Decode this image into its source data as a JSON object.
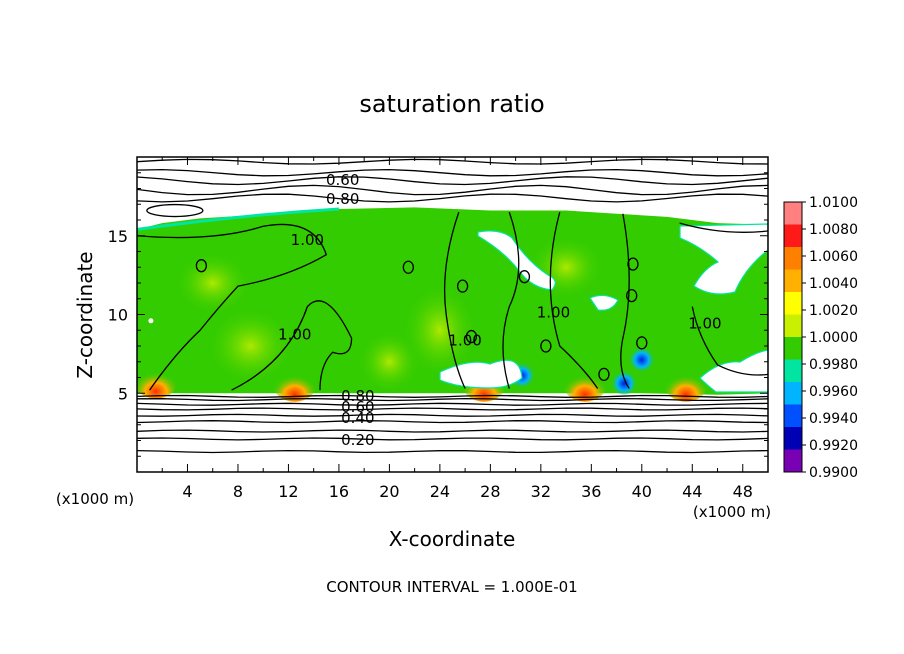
{
  "chart_data": {
    "type": "heatmap",
    "title": "saturation ratio",
    "xlabel": "X-coordinate",
    "ylabel": "Z-coordinate",
    "x_unit": "(x1000 m)",
    "y_unit": "(x1000 m)",
    "xlim": [
      0,
      50
    ],
    "ylim": [
      0,
      20
    ],
    "x_ticks": [
      "4",
      "8",
      "12",
      "16",
      "20",
      "24",
      "28",
      "32",
      "36",
      "40",
      "44",
      "48"
    ],
    "y_ticks": [
      "5",
      "10",
      "15"
    ],
    "footer": "CONTOUR INTERVAL = 1.000E-01",
    "colorbar": {
      "min": 0.99,
      "max": 1.01,
      "labels": [
        "1.0100",
        "1.0080",
        "1.0060",
        "1.0040",
        "1.0020",
        "1.0000",
        "0.9980",
        "0.9960",
        "0.9940",
        "0.9920",
        "0.9900"
      ],
      "colors": [
        "#ff8080",
        "#ff1a1a",
        "#ff7f00",
        "#ffb000",
        "#ffff00",
        "#c8f000",
        "#33cc00",
        "#00e6a0",
        "#00b4ff",
        "#0050ff",
        "#0000b4",
        "#7a00b4"
      ]
    },
    "contour_labels": [
      {
        "text": "0.60",
        "x": 16.3,
        "y": 18.6
      },
      {
        "text": "0.80",
        "x": 16.3,
        "y": 17.4
      },
      {
        "text": "1.00",
        "x": 13.5,
        "y": 14.8
      },
      {
        "text": "1.00",
        "x": 12.5,
        "y": 8.8
      },
      {
        "text": "1.00",
        "x": 26.0,
        "y": 8.4
      },
      {
        "text": "1.00",
        "x": 33.0,
        "y": 10.2
      },
      {
        "text": "1.00",
        "x": 45.0,
        "y": 9.5
      },
      {
        "text": "0.80",
        "x": 17.5,
        "y": 4.9
      },
      {
        "text": "0.60",
        "x": 17.5,
        "y": 4.2
      },
      {
        "text": "0.40",
        "x": 17.5,
        "y": 3.5
      },
      {
        "text": "0.20",
        "x": 17.5,
        "y": 2.1
      }
    ]
  }
}
